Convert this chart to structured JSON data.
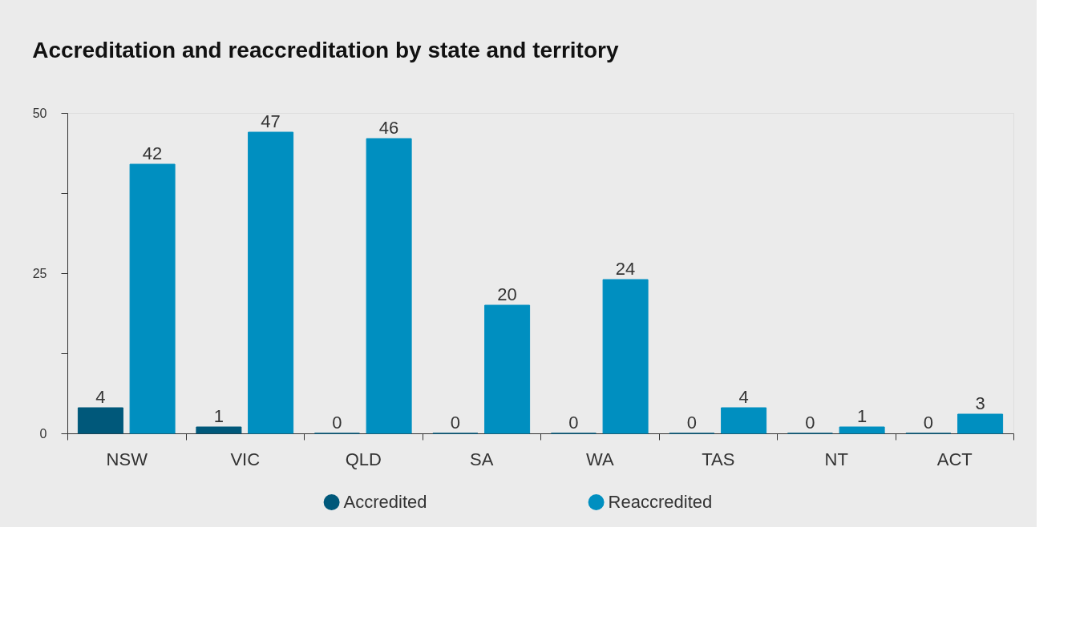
{
  "chart_data": {
    "type": "bar",
    "title": "Accreditation and reaccreditation by state and territory",
    "categories": [
      "NSW",
      "VIC",
      "QLD",
      "SA",
      "WA",
      "TAS",
      "NT",
      "ACT"
    ],
    "series": [
      {
        "name": "Accredited",
        "color": "#00587a",
        "values": [
          4,
          1,
          0,
          0,
          0,
          0,
          0,
          0
        ]
      },
      {
        "name": "Reaccredited",
        "color": "#008fc0",
        "values": [
          42,
          47,
          46,
          20,
          24,
          4,
          1,
          3
        ]
      }
    ],
    "ylim": [
      0,
      50
    ],
    "yticks": [
      0,
      {
        "value": 12.5,
        "label": null
      },
      25,
      {
        "value": 37.5,
        "label": null
      },
      50
    ],
    "data_labels": true,
    "grid": false,
    "legend": "bottom"
  }
}
